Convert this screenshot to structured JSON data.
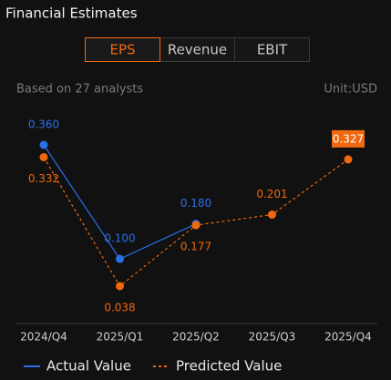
{
  "header": {
    "title": "Financial Estimates"
  },
  "tabs": {
    "items": [
      "EPS",
      "Revenue",
      "EBIT"
    ],
    "selected": 0
  },
  "info": {
    "analysts": "Based on 27 analysts",
    "unit": "Unit:USD"
  },
  "chart_data": {
    "type": "line",
    "categories": [
      "2024/Q4",
      "2025/Q1",
      "2025/Q2",
      "2025/Q3",
      "2025/Q4"
    ],
    "series": [
      {
        "name": "Actual Value",
        "color": "#2a6fe6",
        "dashed": false,
        "values": [
          0.36,
          0.1,
          0.18,
          null,
          null
        ],
        "value_labels": [
          "0.360",
          "0.100",
          "0.180",
          null,
          null
        ]
      },
      {
        "name": "Predicted Value",
        "color": "#f0680f",
        "dashed": true,
        "values": [
          0.332,
          0.038,
          0.177,
          0.201,
          0.327
        ],
        "value_labels": [
          "0.332",
          "0.038",
          "0.177",
          "0.201",
          "0.327"
        ]
      }
    ]
  }
}
